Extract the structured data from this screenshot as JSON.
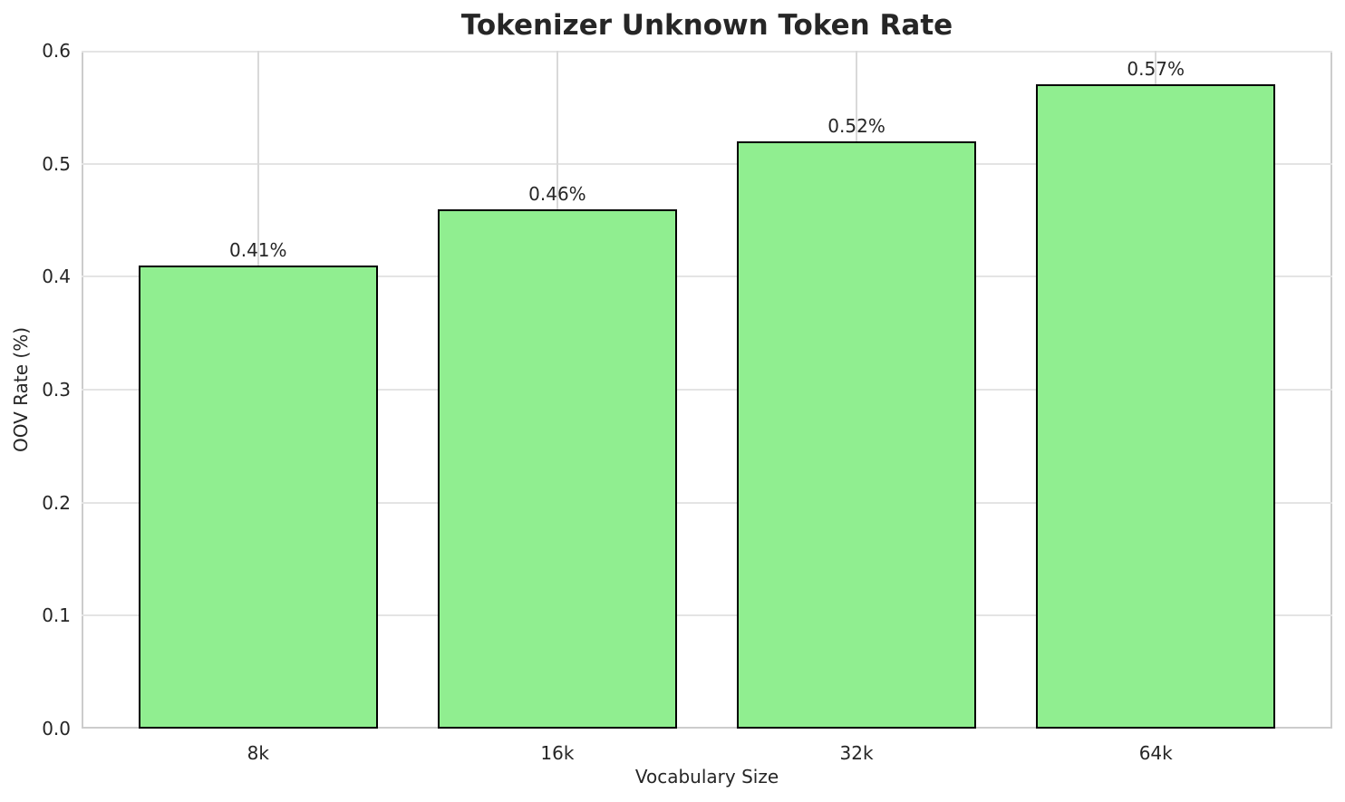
{
  "chart_data": {
    "type": "bar",
    "title": "Tokenizer Unknown Token Rate",
    "xlabel": "Vocabulary Size",
    "ylabel": "OOV Rate (%)",
    "categories": [
      "8k",
      "16k",
      "32k",
      "64k"
    ],
    "values": [
      0.41,
      0.46,
      0.52,
      0.57
    ],
    "bar_labels": [
      "0.41%",
      "0.46%",
      "0.52%",
      "0.57%"
    ],
    "ylim": [
      0.0,
      0.6
    ],
    "yticks": [
      0.0,
      0.1,
      0.2,
      0.3,
      0.4,
      0.5,
      0.6
    ],
    "ytick_labels": [
      "0.0",
      "0.1",
      "0.2",
      "0.3",
      "0.4",
      "0.5",
      "0.6"
    ],
    "grid": true,
    "legend": "none",
    "bar_color": "#90EE90",
    "bar_edge_color": "#000000"
  }
}
